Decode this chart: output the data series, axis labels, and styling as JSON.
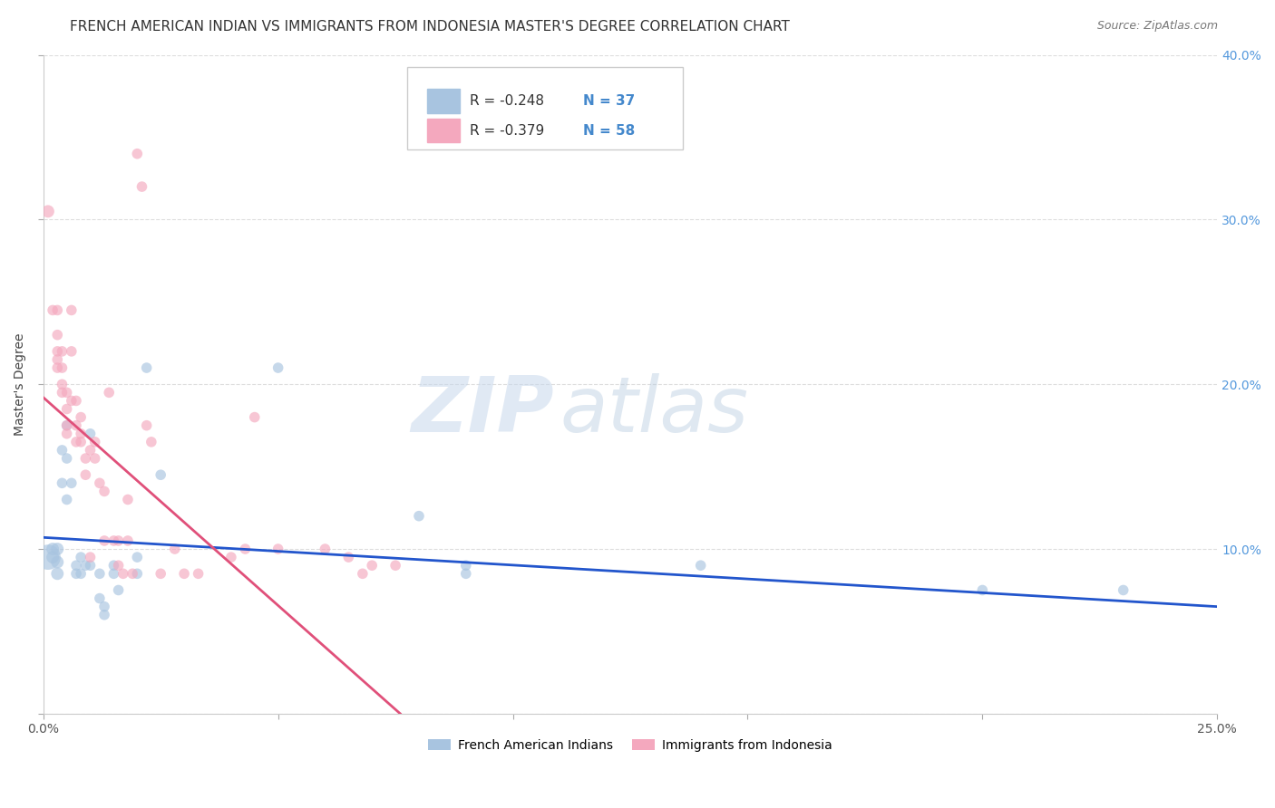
{
  "title": "FRENCH AMERICAN INDIAN VS IMMIGRANTS FROM INDONESIA MASTER'S DEGREE CORRELATION CHART",
  "source": "Source: ZipAtlas.com",
  "ylabel": "Master's Degree",
  "xlim": [
    0.0,
    0.25
  ],
  "ylim": [
    0.0,
    0.4
  ],
  "yticks": [
    0.0,
    0.1,
    0.2,
    0.3,
    0.4
  ],
  "right_ytick_labels": [
    "",
    "10.0%",
    "20.0%",
    "30.0%",
    "40.0%"
  ],
  "xticks": [
    0.0,
    0.05,
    0.1,
    0.15,
    0.2,
    0.25
  ],
  "xtick_labels": [
    "0.0%",
    "",
    "",
    "",
    "",
    "25.0%"
  ],
  "blue_color": "#a8c4e0",
  "pink_color": "#f4a8be",
  "blue_line_color": "#2255cc",
  "pink_line_color": "#e0507a",
  "legend_R_blue": "R = -0.248",
  "legend_N_blue": "N = 37",
  "legend_R_pink": "R = -0.379",
  "legend_N_pink": "N = 58",
  "legend_label_blue": "French American Indians",
  "legend_label_pink": "Immigrants from Indonesia",
  "watermark_zip": "ZIP",
  "watermark_atlas": "atlas",
  "blue_points": [
    [
      0.001,
      0.095
    ],
    [
      0.002,
      0.1
    ],
    [
      0.002,
      0.095
    ],
    [
      0.003,
      0.1
    ],
    [
      0.003,
      0.092
    ],
    [
      0.003,
      0.085
    ],
    [
      0.004,
      0.16
    ],
    [
      0.004,
      0.14
    ],
    [
      0.005,
      0.175
    ],
    [
      0.005,
      0.155
    ],
    [
      0.005,
      0.13
    ],
    [
      0.006,
      0.14
    ],
    [
      0.007,
      0.09
    ],
    [
      0.007,
      0.085
    ],
    [
      0.008,
      0.095
    ],
    [
      0.008,
      0.085
    ],
    [
      0.009,
      0.09
    ],
    [
      0.01,
      0.17
    ],
    [
      0.01,
      0.09
    ],
    [
      0.012,
      0.085
    ],
    [
      0.012,
      0.07
    ],
    [
      0.013,
      0.065
    ],
    [
      0.013,
      0.06
    ],
    [
      0.015,
      0.09
    ],
    [
      0.015,
      0.085
    ],
    [
      0.016,
      0.075
    ],
    [
      0.02,
      0.095
    ],
    [
      0.02,
      0.085
    ],
    [
      0.022,
      0.21
    ],
    [
      0.025,
      0.145
    ],
    [
      0.05,
      0.21
    ],
    [
      0.08,
      0.12
    ],
    [
      0.09,
      0.09
    ],
    [
      0.09,
      0.085
    ],
    [
      0.14,
      0.09
    ],
    [
      0.2,
      0.075
    ],
    [
      0.23,
      0.075
    ]
  ],
  "pink_points": [
    [
      0.001,
      0.305
    ],
    [
      0.002,
      0.245
    ],
    [
      0.003,
      0.245
    ],
    [
      0.003,
      0.23
    ],
    [
      0.003,
      0.22
    ],
    [
      0.003,
      0.215
    ],
    [
      0.003,
      0.21
    ],
    [
      0.004,
      0.22
    ],
    [
      0.004,
      0.21
    ],
    [
      0.004,
      0.2
    ],
    [
      0.004,
      0.195
    ],
    [
      0.005,
      0.195
    ],
    [
      0.005,
      0.185
    ],
    [
      0.005,
      0.175
    ],
    [
      0.005,
      0.17
    ],
    [
      0.006,
      0.245
    ],
    [
      0.006,
      0.22
    ],
    [
      0.006,
      0.19
    ],
    [
      0.007,
      0.19
    ],
    [
      0.007,
      0.175
    ],
    [
      0.007,
      0.165
    ],
    [
      0.008,
      0.18
    ],
    [
      0.008,
      0.17
    ],
    [
      0.008,
      0.165
    ],
    [
      0.009,
      0.155
    ],
    [
      0.009,
      0.145
    ],
    [
      0.01,
      0.16
    ],
    [
      0.01,
      0.095
    ],
    [
      0.011,
      0.165
    ],
    [
      0.011,
      0.155
    ],
    [
      0.012,
      0.14
    ],
    [
      0.013,
      0.135
    ],
    [
      0.013,
      0.105
    ],
    [
      0.014,
      0.195
    ],
    [
      0.015,
      0.105
    ],
    [
      0.016,
      0.105
    ],
    [
      0.016,
      0.09
    ],
    [
      0.017,
      0.085
    ],
    [
      0.018,
      0.13
    ],
    [
      0.018,
      0.105
    ],
    [
      0.019,
      0.085
    ],
    [
      0.02,
      0.34
    ],
    [
      0.021,
      0.32
    ],
    [
      0.022,
      0.175
    ],
    [
      0.023,
      0.165
    ],
    [
      0.025,
      0.085
    ],
    [
      0.028,
      0.1
    ],
    [
      0.03,
      0.085
    ],
    [
      0.033,
      0.085
    ],
    [
      0.04,
      0.095
    ],
    [
      0.043,
      0.1
    ],
    [
      0.045,
      0.18
    ],
    [
      0.05,
      0.1
    ],
    [
      0.06,
      0.1
    ],
    [
      0.065,
      0.095
    ],
    [
      0.068,
      0.085
    ],
    [
      0.07,
      0.09
    ],
    [
      0.075,
      0.09
    ]
  ],
  "blue_line_x": [
    0.0,
    0.25
  ],
  "blue_line_y": [
    0.107,
    0.065
  ],
  "pink_line_x": [
    0.0,
    0.076
  ],
  "pink_line_y": [
    0.192,
    0.0
  ],
  "title_fontsize": 11,
  "source_fontsize": 9,
  "axis_label_fontsize": 10,
  "tick_fontsize": 10,
  "legend_fontsize": 11,
  "watermark_fontsize_zip": 62,
  "watermark_fontsize_atlas": 62
}
